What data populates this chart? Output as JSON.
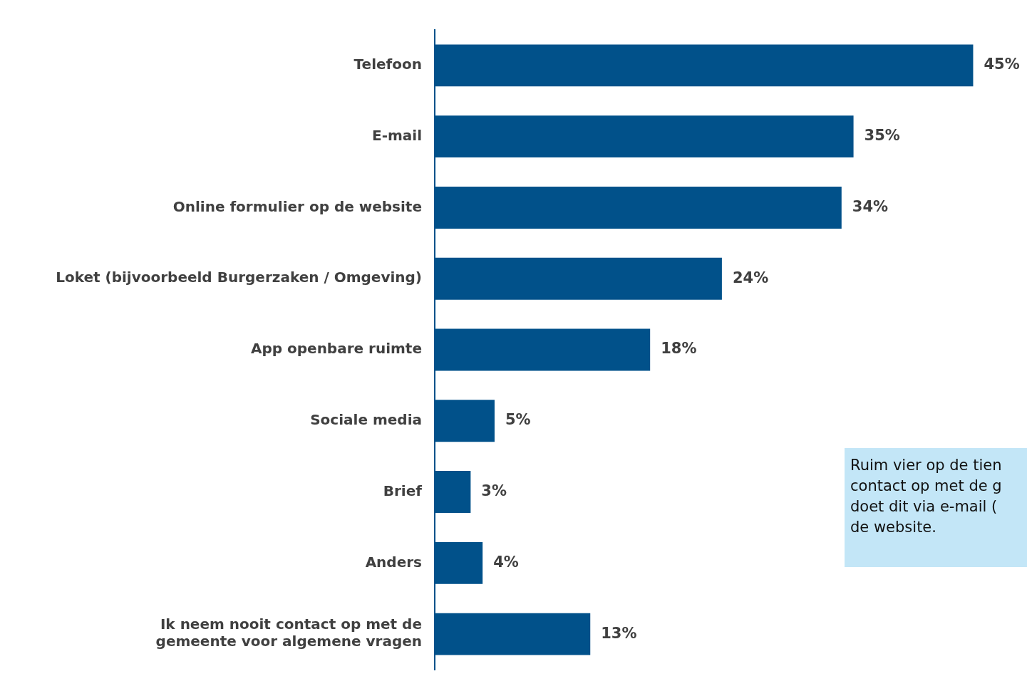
{
  "chart_data": {
    "type": "bar",
    "orientation": "horizontal",
    "categories": [
      "Telefoon",
      "E-mail",
      "Online formulier op de website",
      "Loket (bijvoorbeeld Burgerzaken / Omgeving)",
      "App openbare ruimte",
      "Sociale media",
      "Brief",
      "Anders",
      "Ik neem nooit contact op met de gemeente voor algemene vragen"
    ],
    "values": [
      45,
      35,
      34,
      24,
      18,
      5,
      3,
      4,
      13
    ],
    "value_labels": [
      "45%",
      "35%",
      "34%",
      "24%",
      "18%",
      "5%",
      "3%",
      "4%",
      "13%"
    ],
    "color": "#01518a",
    "annotations": [
      "Ruim vier op de tien\ncontact op met de g\ndoet dit via e-mail (\nde website."
    ]
  }
}
